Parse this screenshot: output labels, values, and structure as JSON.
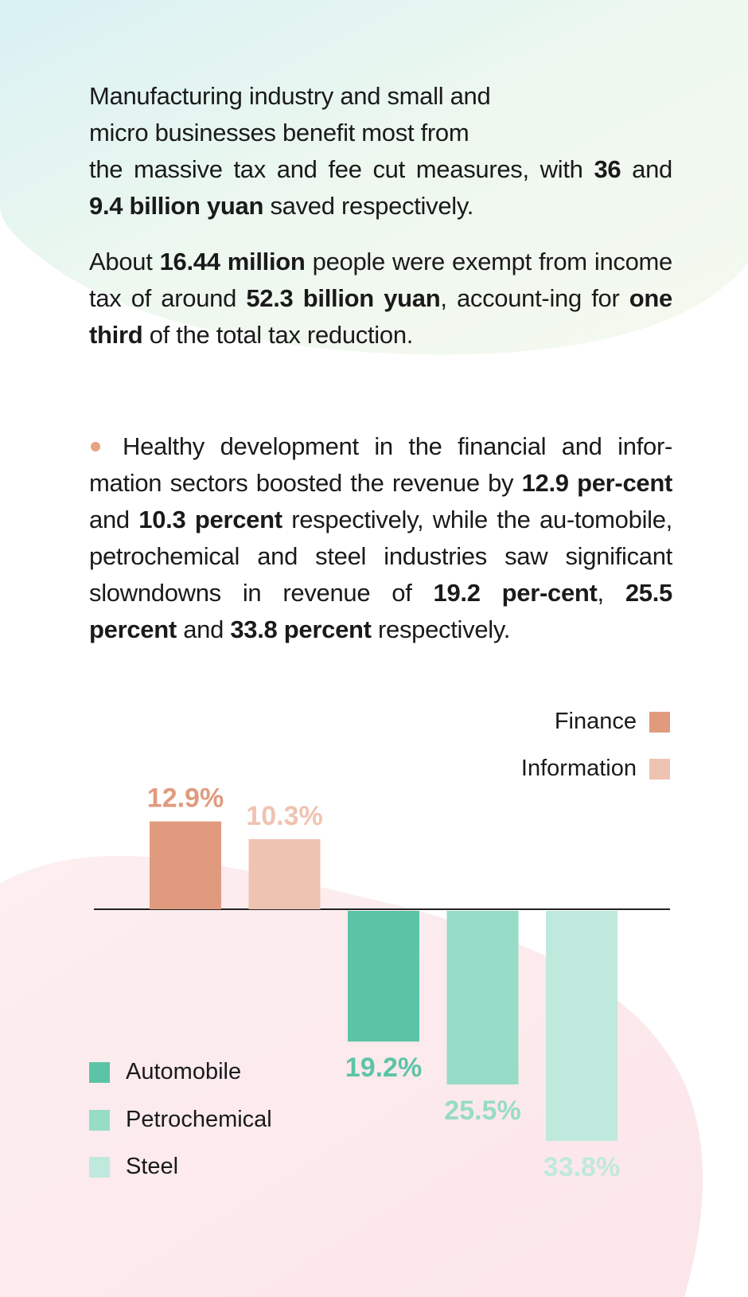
{
  "paragraphs": {
    "p1": [
      "Manufacturing industry and small and",
      "micro businesses benefit most from",
      "the massive tax and fee cut measures, with ",
      "36",
      " and ",
      "9.4 billion yuan",
      " saved respectively."
    ],
    "p2": [
      "About ",
      "16.44 million",
      " people were exempt from income tax of around ",
      "52.3 billion yuan",
      ", account-ing for ",
      "one third",
      " of the total tax reduction."
    ],
    "p3": [
      "Healthy development in the financial and infor-mation sectors boosted the revenue by ",
      "12.9 per-cent",
      " and ",
      "10.3 percent",
      " respectively, while the au-tomobile, petrochemical and steel industries saw significant slowndowns in revenue of ",
      "19.2 per-cent",
      ", ",
      "25.5 percent",
      " and ",
      "33.8 percent",
      " respectively."
    ]
  },
  "colors": {
    "finance": "#e09b7e",
    "information": "#efc3b1",
    "automobile": "#5cc4a6",
    "petrochemical": "#97dcc6",
    "steel": "#bfe9dc",
    "bullet": "#e7a183"
  },
  "chart_data": {
    "type": "bar",
    "categories": [
      "Finance",
      "Information",
      "Automobile",
      "Petrochemical",
      "Steel"
    ],
    "values": [
      12.9,
      10.3,
      -19.2,
      -25.5,
      -33.8
    ],
    "labels": [
      "12.9%",
      "10.3%",
      "19.2%",
      "25.5%",
      "33.8%"
    ],
    "legend_top": [
      "Finance",
      "Information"
    ],
    "legend_bottom": [
      "Automobile",
      "Petrochemical",
      "Steel"
    ],
    "title": "",
    "xlabel": "",
    "ylabel": "",
    "grid": false,
    "baseline": 0
  }
}
